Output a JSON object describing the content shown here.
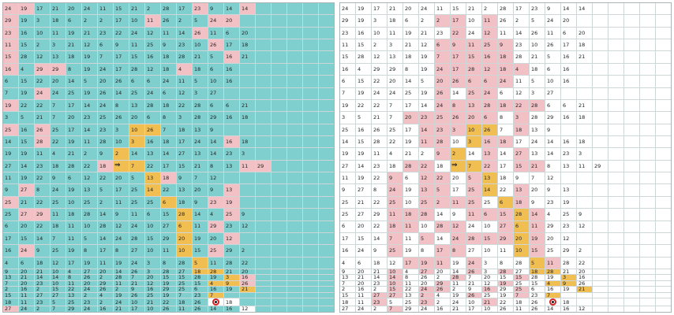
{
  "colors": {
    "teal": "#7fcfcf",
    "pink": "#f2c1c6",
    "yellow": "#f1be52",
    "white": "#ffffff"
  },
  "legend": {
    "t": "teal cell",
    "w": "white cell",
    "p": "pink cell",
    "y": "yellow path cell"
  },
  "icons": {
    "arrow": "right-double-arrow-icon",
    "target": "red-ring-target-icon"
  },
  "boards": [
    {
      "id": "left",
      "rows": [
        "p24|p19|t17|t21|t20|t24|t11|t15|t21|t2|t28|t17|p23|t9|t14|p14",
        "p29|t19|t3|t18|t6|t2|t2|t17|t10|p11|t26|t2|t5|p24|p20",
        "p23|t16|t10|t11|t19|t21|t23|t22|t24|t12|t11|t14|p26|t11|t6|t20",
        "p11|t15|t2|t3|t21|t12|t6|t9|t11|t25|t9|t23|t10|p26|t17|t18",
        "p15|t28|t12|t13|t18|t19|t7|t17|t15|t16|t18|t28|t21|t5|p16|t21",
        "p16|t4|p29|p29|t8|t19|t24|t17|t28|t12|t18|p4|t18|t6|t16",
        "t6|t15|t22|t20|t14|t5|t20|t26|t6|t6|t24|t11|t5|t10|t16",
        "t7|t19|p24|t24|t25|t19|t26|t14|t25|t24|t6|t12|t3|t27",
        "p19|t22|t22|t7|t17|t14|t24|t8|t13|t28|t18|t22|t28|t6|t6|t21",
        "t3|t5|t21|t7|t20|t23|t25|t26|t20|t6|t8|t3|t28|t29|t16|t18",
        "p25|t16|p26|t25|t17|t14|t23|t3|y10|y26|t7|t18|t13|t9",
        "t14|t15|p28|t22|t19|t11|t28|t10|y3|t16|t18|t17|t24|t14|p16|t18",
        "t19|t19|t11|t4|t21|t2|t9|y2|t14|t13|t14|t27|t13|t14|t23|t3",
        "t27|t14|t23|t18|t28|t22|p18|→|y7|t22|t17|t15|t21|t8|t13|p11|p29",
        "t11|t19|t22|t9|t6|t12|t22|t20|t5|y13|p18|t9|t7|t12",
        "t9|p27|t8|t24|t19|t13|t5|t17|t25|y14|t22|t13|t20|t9|p13",
        "p25|t21|t22|t25|t10|t25|t2|t11|t25|t25|y6|t18|t9|p23|p19",
        "t25|p27|p29|t11|t18|t28|t14|t9|t11|t6|t15|y28|t14|t4|p25|t9",
        "t6|t20|t22|t18|t11|t10|t28|t12|t24|t10|t27|y6|t11|p29|t23|t12",
        "t17|t15|t14|t7|t11|t5|t14|t24|t28|t15|t29|y20|t19|t20|p12",
        "t16|p24|t9|t25|t19|t8|t17|t8|t27|t10|t11|y10|t15|p25|t29|t2",
        "t4|t6|t18|t12|t17|t19|t11|t19|t24|t3|t8|t28|y5|t11|t28|t22",
        "t9|t20|t21|t10|t4|t27|t20|t14|t26|t3|t28|t27|y18|y28|t21|t20",
        "t13|t21|t14|t14|t8|t26|t2|t28|t7|t20|t15|t15|t28|t19|y3|p16",
        "t7|t20|t23|t10|t11|t20|t29|t11|t21|t12|t19|t25|t15|y4|y9|p26",
        "t2|t16|t2|t15|t22|t24|t26|t2|t9|t16|t29|t25|t6|t16|t19|y21",
        "t15|t11|t27|t27|t13|t2|t4|t19|t26|t25|t19|t7|t23|y7",
        "t18|t11|t23|t5|t25|t23|t2|t24|t10|t21|t22|t18|t26|◎|w18",
        "p27|t24|t2|t7|t29|t24|t16|t21|t17|t10|t26|t11|t26|t14|t16|w12"
      ]
    },
    {
      "id": "right",
      "rows": [
        "w24|w19|w17|w21|w20|w24|w11|w15|w21|w2|w28|w17|w23|w9|w14|w14",
        "w29|w19|w3|w18|w6|w2|p2|p17|w10|p11|w26|w2|w5|w24|w20",
        "w23|w16|w10|w11|w19|w21|w23|p22|w24|p12|w11|w14|w26|w11|w6|w20",
        "w11|w15|w2|w3|w21|w12|p6|p9|p11|p25|p9|w23|w10|w26|w17|w18",
        "w15|w28|w12|w13|w18|w19|p7|p17|p15|p16|p18|w28|w21|w5|w16|w21",
        "w16|w4|w29|w29|w8|w19|p24|p17|p28|p12|p18|p4|w18|w6|w16",
        "w6|w15|w22|w20|w14|w5|p20|p26|p6|p6|p24|w11|w5|w10|w16",
        "w7|w19|w24|w24|w25|w19|p26|w14|p25|p24|w6|w12|w3|w27",
        "w19|w22|w22|w7|w17|w14|p24|p8|p13|p28|p18|p22|p28|w6|w6|w21",
        "w3|w5|w21|w7|p20|p23|p25|p26|p20|p6|w8|p3|w28|w29|w16|w18",
        "w25|w16|w26|w25|w17|p14|p23|p3|y10|y26|w7|p18|w13|w9",
        "w14|w15|w28|w22|w19|p11|p28|w10|y3|p16|p18|w17|w24|w14|w16|w18",
        "w19|w19|w11|w4|w21|w2|p9|y2|w14|p13|w14|p27|w13|w14|w23|w3",
        "w27|w14|w23|w18|p28|p22|w18|→|y7|p22|w17|p15|p21|w8|w13|w11|w29",
        "w11|w19|w22|p9|w6|p12|p22|w20|p5|y13|w18|w9|w7|w12",
        "w9|w27|w8|p24|w19|p13|p5|w17|p25|y14|w22|p13|w20|w9|w13",
        "w25|w21|w22|p25|w10|p25|p2|p11|p25|w25|y6|p18|w9|w23|w19",
        "w25|w27|w29|p11|p18|p28|w14|w9|p11|p6|p15|y28|p14|w4|w25|w9",
        "w6|w20|w22|p18|p11|w10|p28|p12|w24|w10|p27|y6|p11|w29|w23|w12",
        "w17|w15|w14|p7|w11|p5|w14|p24|p28|p15|p29|y20|p19|w20|w12",
        "w16|w24|w9|p25|w19|w8|p17|p8|w27|w10|w11|y10|p15|w25|w29|w2",
        "w4|w6|w18|w12|p17|p19|p11|w19|p24|w3|w8|w28|y5|p11|w28|w22",
        "w9|w20|w21|p10|w4|p27|w20|w14|p26|w3|p28|w27|y18|y28|w21|w20",
        "w13|w21|w14|p14|w8|w26|w2|p28|w7|w20|w15|p15|w28|w19|y3|w16",
        "w7|w20|w23|p10|w11|w20|p29|w11|w21|w12|p19|w25|w15|y4|y9|w26",
        "w2|w16|w2|p15|w22|p24|p26|w2|w9|p16|w29|p25|w6|w16|w19|y21",
        "w15|w11|p27|p27|w13|p2|w4|w19|p26|w25|w19|p7|w23|y7",
        "w18|w11|p23|w5|w25|p23|w2|w24|w10|p21|w22|w18|w26|◎|w18",
        "w27|w24|w2|p7|w29|w24|w16|w21|w17|w10|w26|w11|w26|w14|w16|w12"
      ]
    }
  ]
}
